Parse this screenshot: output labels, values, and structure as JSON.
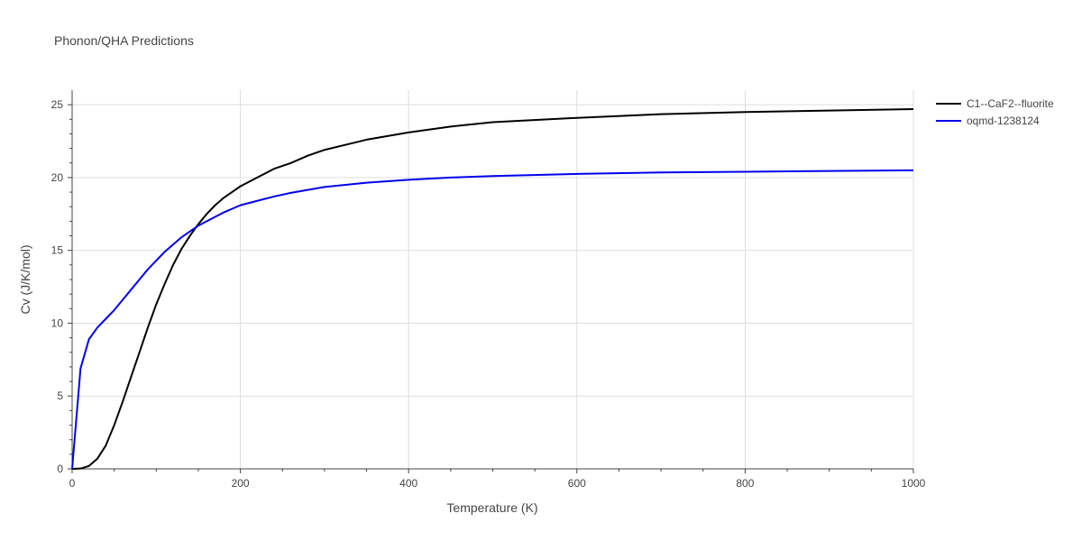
{
  "chart_data": {
    "type": "line",
    "title": "Phonon/QHA Predictions",
    "xlabel": "Temperature (K)",
    "ylabel": "Cv (J/K/mol)",
    "xlim": [
      0,
      1000
    ],
    "ylim": [
      0,
      26
    ],
    "x_ticks": [
      0,
      200,
      400,
      600,
      800,
      1000
    ],
    "y_ticks": [
      0,
      5,
      10,
      15,
      20,
      25
    ],
    "grid": true,
    "legend_position": "top-right outside",
    "series": [
      {
        "name": "C1--CaF2--fluorite",
        "color": "#000000",
        "points": [
          [
            0,
            0
          ],
          [
            10,
            0.02
          ],
          [
            20,
            0.2
          ],
          [
            30,
            0.7
          ],
          [
            40,
            1.6
          ],
          [
            50,
            3.0
          ],
          [
            60,
            4.6
          ],
          [
            70,
            6.3
          ],
          [
            80,
            8.0
          ],
          [
            90,
            9.7
          ],
          [
            100,
            11.3
          ],
          [
            110,
            12.7
          ],
          [
            120,
            14.0
          ],
          [
            130,
            15.1
          ],
          [
            140,
            16.0
          ],
          [
            150,
            16.8
          ],
          [
            160,
            17.5
          ],
          [
            170,
            18.1
          ],
          [
            180,
            18.6
          ],
          [
            200,
            19.4
          ],
          [
            220,
            20.0
          ],
          [
            240,
            20.6
          ],
          [
            260,
            21.0
          ],
          [
            280,
            21.5
          ],
          [
            300,
            21.9
          ],
          [
            350,
            22.6
          ],
          [
            400,
            23.1
          ],
          [
            450,
            23.5
          ],
          [
            500,
            23.8
          ],
          [
            600,
            24.1
          ],
          [
            700,
            24.35
          ],
          [
            800,
            24.5
          ],
          [
            900,
            24.6
          ],
          [
            1000,
            24.7
          ]
        ]
      },
      {
        "name": "oqmd-1238124",
        "color": "#0000ee",
        "points": [
          [
            0,
            0
          ],
          [
            10,
            6.9
          ],
          [
            20,
            8.9
          ],
          [
            30,
            9.7
          ],
          [
            40,
            10.3
          ],
          [
            50,
            10.9
          ],
          [
            60,
            11.6
          ],
          [
            70,
            12.3
          ],
          [
            80,
            13.0
          ],
          [
            90,
            13.7
          ],
          [
            100,
            14.3
          ],
          [
            110,
            14.9
          ],
          [
            120,
            15.4
          ],
          [
            130,
            15.9
          ],
          [
            140,
            16.3
          ],
          [
            150,
            16.7
          ],
          [
            160,
            17.0
          ],
          [
            170,
            17.3
          ],
          [
            180,
            17.6
          ],
          [
            200,
            18.1
          ],
          [
            220,
            18.4
          ],
          [
            240,
            18.7
          ],
          [
            260,
            18.95
          ],
          [
            280,
            19.15
          ],
          [
            300,
            19.35
          ],
          [
            350,
            19.65
          ],
          [
            400,
            19.85
          ],
          [
            450,
            20.0
          ],
          [
            500,
            20.1
          ],
          [
            600,
            20.25
          ],
          [
            700,
            20.35
          ],
          [
            800,
            20.4
          ],
          [
            900,
            20.45
          ],
          [
            1000,
            20.5
          ]
        ]
      }
    ]
  }
}
